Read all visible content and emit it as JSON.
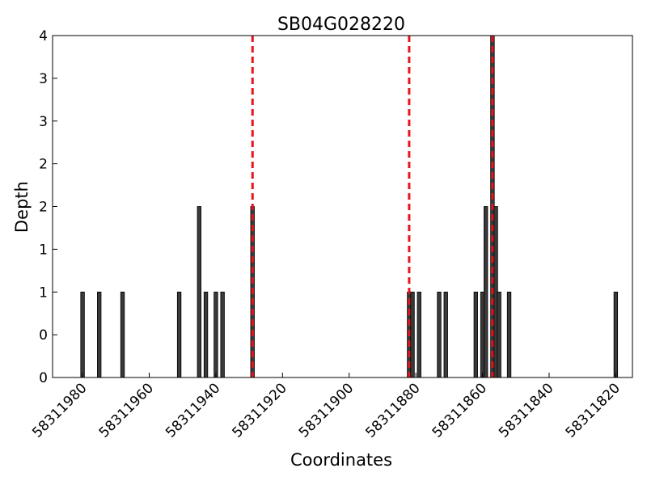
{
  "chart_data": {
    "type": "bar",
    "title": "SB04G028220",
    "xlabel": "Coordinates",
    "ylabel": "Depth",
    "x_reversed": true,
    "xlim": [
      58311989,
      58311815
    ],
    "ylim": [
      0,
      4
    ],
    "x_ticks": [
      58311980,
      58311960,
      58311940,
      58311920,
      58311900,
      58311880,
      58311860,
      58311840,
      58311820
    ],
    "x_tick_labels": [
      "58311980",
      "58311960",
      "58311940",
      "58311920",
      "58311900",
      "58311880",
      "58311860",
      "58311840",
      "58311820"
    ],
    "y_ticks": [
      0,
      0.5,
      1,
      1.5,
      2,
      2.5,
      3,
      3.5,
      4
    ],
    "y_tick_labels": [
      "0",
      "0",
      "1",
      "1",
      "2",
      "2",
      "3",
      "3",
      "4"
    ],
    "bars": {
      "x": [
        58311980,
        58311975,
        58311968,
        58311951,
        58311945,
        58311943,
        58311940,
        58311938,
        58311929,
        58311882,
        58311881,
        58311879,
        58311873,
        58311871,
        58311862,
        58311860,
        58311859,
        58311857,
        58311856,
        58311855,
        58311852,
        58311820
      ],
      "values": [
        1,
        1,
        1,
        1,
        2,
        1,
        1,
        1,
        2,
        1,
        1,
        1,
        1,
        1,
        1,
        1,
        2,
        4,
        2,
        1,
        1,
        1
      ],
      "color": "#3a3a3a"
    },
    "reference_lines": {
      "x": [
        58311929,
        58311882,
        58311857
      ],
      "color": "#e8141c",
      "style": "dashed"
    },
    "grid": false,
    "legend": "none"
  }
}
